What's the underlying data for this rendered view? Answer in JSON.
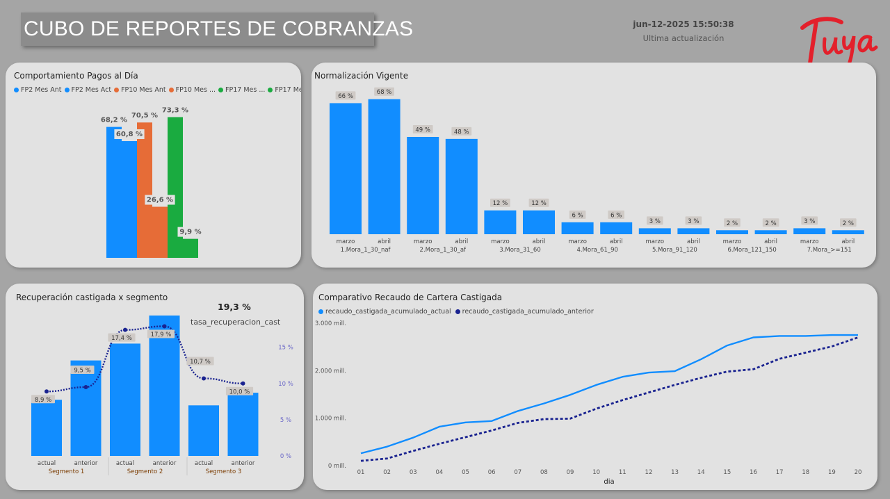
{
  "header": {
    "title": "CUBO DE REPORTES DE COBRANZAS",
    "timestamp": "jun-12-2025 15:50:38",
    "timestamp_label": "Ultima actualización",
    "logo_text": "tuya",
    "logo_color": "#e3202b"
  },
  "chart_data": [
    {
      "id": "pagos",
      "type": "bar",
      "title": "Comportamiento Pagos al Día",
      "legend": [
        "FP2 Mes Ant",
        "FP2 Mes Act",
        "FP10 Mes Ant",
        "FP10 Mes ...",
        "FP17 Mes ...",
        "FP17 Mes ..."
      ],
      "series": [
        {
          "name": "FP2 Mes Ant",
          "color": "#118dff",
          "value": 68.2,
          "label": "68,2 %"
        },
        {
          "name": "FP2 Mes Act",
          "color": "#118dff",
          "value": 60.8,
          "label": "60,8 %"
        },
        {
          "name": "FP10 Mes Ant",
          "color": "#e66c37",
          "value": 70.5,
          "label": "70,5 %"
        },
        {
          "name": "FP10 Mes ...",
          "color": "#e66c37",
          "value": 26.6,
          "label": "26,6 %"
        },
        {
          "name": "FP17 Mes ...",
          "color": "#1aab40",
          "value": 73.3,
          "label": "73,3 %"
        },
        {
          "name": "FP17 Mes ...",
          "color": "#1aab40",
          "value": 9.9,
          "label": "9,9 %"
        }
      ],
      "ylim": [
        0,
        80
      ]
    },
    {
      "id": "normalizacion",
      "type": "bar",
      "title": "Normalización Vigente",
      "color": "#118dff",
      "groups": [
        {
          "name": "1.Mora_1_30_naf",
          "bars": [
            {
              "month": "marzo",
              "value": 66,
              "label": "66 %"
            },
            {
              "month": "abril",
              "value": 68,
              "label": "68 %"
            }
          ]
        },
        {
          "name": "2.Mora_1_30_af",
          "bars": [
            {
              "month": "marzo",
              "value": 49,
              "label": "49 %"
            },
            {
              "month": "abril",
              "value": 48,
              "label": "48 %"
            }
          ]
        },
        {
          "name": "3.Mora_31_60",
          "bars": [
            {
              "month": "marzo",
              "value": 12,
              "label": "12 %"
            },
            {
              "month": "abril",
              "value": 12,
              "label": "12 %"
            }
          ]
        },
        {
          "name": "4.Mora_61_90",
          "bars": [
            {
              "month": "marzo",
              "value": 6,
              "label": "6 %"
            },
            {
              "month": "abril",
              "value": 6,
              "label": "6 %"
            }
          ]
        },
        {
          "name": "5.Mora_91_120",
          "bars": [
            {
              "month": "marzo",
              "value": 3,
              "label": "3 %"
            },
            {
              "month": "abril",
              "value": 3,
              "label": "3 %"
            }
          ]
        },
        {
          "name": "6.Mora_121_150",
          "bars": [
            {
              "month": "marzo",
              "value": 2,
              "label": "2 %"
            },
            {
              "month": "abril",
              "value": 2,
              "label": "2 %"
            }
          ]
        },
        {
          "name": "7.Mora_>=151",
          "bars": [
            {
              "month": "marzo",
              "value": 3,
              "label": "3 %"
            },
            {
              "month": "abril",
              "value": 2,
              "label": "2 %"
            }
          ]
        }
      ],
      "ylim": [
        0,
        70
      ]
    },
    {
      "id": "recuperacion",
      "type": "bar",
      "title": "Recuperación castigada x segmento",
      "kpi_value": "19,3 %",
      "kpi_label": "tasa_recuperacion_cast",
      "bar_color": "#118dff",
      "line_color": "#1a2390",
      "bar_ylim": [
        0,
        1
      ],
      "line_ylim": [
        0,
        19
      ],
      "right_ticks": [
        "0 %",
        "5 %",
        "10 %",
        "15 %"
      ],
      "right_tick_values": [
        0,
        5,
        10,
        15
      ],
      "groups": [
        {
          "name": "Segmento 1",
          "bars": [
            {
              "x": "actual",
              "bar": 0.4,
              "line": 8.9,
              "label": "8,9 %"
            },
            {
              "x": "anterior",
              "bar": 0.68,
              "line": 9.5,
              "label": "9,5 %"
            }
          ]
        },
        {
          "name": "Segmento 2",
          "bars": [
            {
              "x": "actual",
              "bar": 0.8,
              "line": 17.4,
              "label": "17,4 %"
            },
            {
              "x": "anterior",
              "bar": 1.0,
              "line": 17.9,
              "label": "17,9 %"
            }
          ]
        },
        {
          "name": "Segmento 3",
          "bars": [
            {
              "x": "actual",
              "bar": 0.36,
              "line": 10.7,
              "label": "10,7 %"
            },
            {
              "x": "anterior",
              "bar": 0.45,
              "line": 10.0,
              "label": "10,0 %"
            }
          ]
        }
      ]
    },
    {
      "id": "recaudo",
      "type": "line",
      "title": "Comparativo Recaudo de Cartera Castigada",
      "xlabel": "dia",
      "ylim": [
        0,
        3000
      ],
      "yticks": [
        0,
        1000,
        2000,
        3000
      ],
      "ytick_labels": [
        "0 mill.",
        "1.000 mill.",
        "2.000 mill.",
        "3.000 mill."
      ],
      "x": [
        "01",
        "02",
        "03",
        "04",
        "05",
        "06",
        "07",
        "08",
        "09",
        "10",
        "11",
        "12",
        "13",
        "14",
        "15",
        "16",
        "17",
        "18",
        "19",
        "20"
      ],
      "series": [
        {
          "name": "recaudo_castigada_acumulado_actual",
          "color": "#118dff",
          "style": "solid",
          "values": [
            260,
            400,
            590,
            820,
            910,
            940,
            1150,
            1310,
            1490,
            1700,
            1870,
            1960,
            1990,
            2240,
            2530,
            2700,
            2730,
            2730,
            2750,
            2750
          ]
        },
        {
          "name": "recaudo_castigada_acumulado_anterior",
          "color": "#1a2390",
          "style": "dotted",
          "values": [
            100,
            150,
            310,
            460,
            600,
            740,
            900,
            980,
            990,
            1200,
            1380,
            1540,
            1700,
            1850,
            1980,
            2030,
            2250,
            2380,
            2510,
            2700
          ]
        }
      ]
    }
  ]
}
